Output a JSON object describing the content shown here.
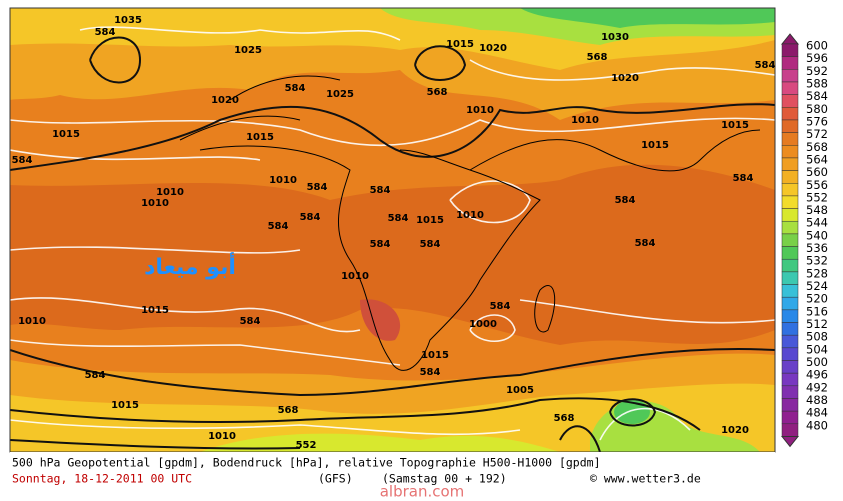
{
  "map": {
    "overlay_text": "أبو ميعاد",
    "contour_labels": [
      584,
      1035,
      1025,
      584,
      1020,
      1025,
      568,
      1015,
      1020,
      568,
      1030,
      1020,
      584,
      1015,
      1015,
      1010,
      584,
      584,
      584,
      584,
      1010,
      1010,
      584,
      584,
      1010,
      584,
      1000,
      584,
      1015,
      1010,
      584,
      1015,
      568,
      552,
      1010,
      1015,
      584,
      1005,
      568,
      1020,
      584,
      584,
      584,
      1015,
      1010,
      1010,
      1015,
      584,
      1010,
      1015,
      584
    ]
  },
  "legend": {
    "values": [
      600,
      596,
      592,
      588,
      584,
      580,
      576,
      572,
      568,
      564,
      560,
      556,
      552,
      548,
      544,
      540,
      536,
      532,
      528,
      524,
      520,
      516,
      512,
      508,
      504,
      500,
      496,
      492,
      488,
      484,
      480
    ],
    "colors": [
      "#8b1a6b",
      "#b02a80",
      "#c8408c",
      "#d84a80",
      "#e05060",
      "#e05a3a",
      "#e06a28",
      "#e57b22",
      "#ec8c20",
      "#f09e22",
      "#f2b024",
      "#f5c628",
      "#f2dc2a",
      "#d8e82e",
      "#a8e040",
      "#78d048",
      "#50c858",
      "#40c880",
      "#3cc8b0",
      "#38c0d8",
      "#30a8e8",
      "#2888e8",
      "#3070e0",
      "#4858d8",
      "#5848d0",
      "#6840c8",
      "#7838c0",
      "#8030b0",
      "#8828a0",
      "#902090",
      "#902080"
    ]
  },
  "caption": {
    "line1": "500 hPa Geopotential [gpdm], Bodendruck [hPa], relative Topographie H500-H1000 [gpdm]",
    "date": "Sonntag, 18-12-2011  00 UTC",
    "model": "(GFS)",
    "run": "(Samstag 00 + 192)",
    "source": "© www.wetter3.de"
  },
  "watermark": "albran.com"
}
